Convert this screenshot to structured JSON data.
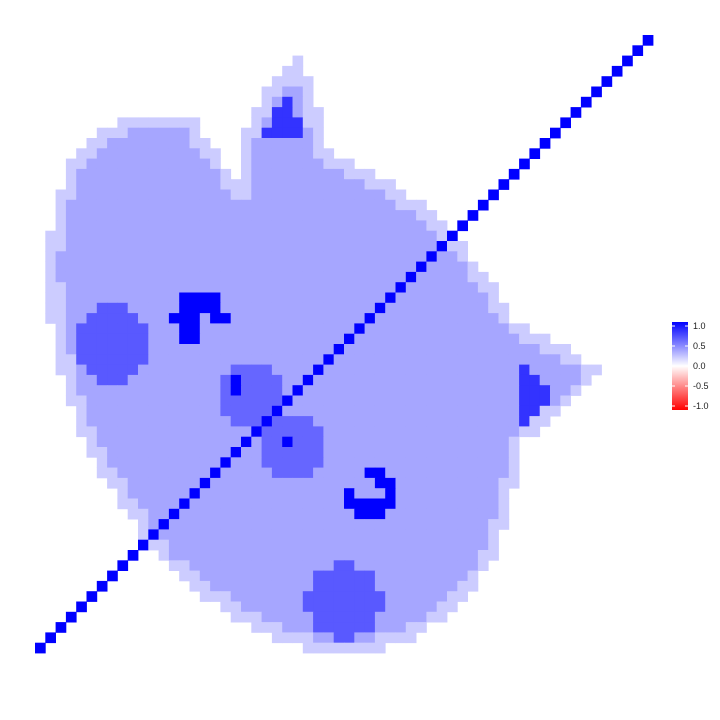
{
  "chart_data": {
    "type": "heatmap",
    "title": "",
    "xlabel": "",
    "ylabel": "",
    "grid": false,
    "axes_visible": false,
    "legend": {
      "position": "right",
      "title": "",
      "ticks": [
        "1.0",
        "0.5",
        "0.0",
        "-0.5",
        "-1.0"
      ],
      "range": [
        -1.0,
        1.0
      ]
    },
    "colorscale": {
      "low": "#ff0000",
      "mid": "#ffffff",
      "high": "#0000ff"
    },
    "grid_size": [
      60,
      60
    ],
    "background_value": 0.35,
    "edge_value": 0.2,
    "regions": [
      {
        "name": "diagonal",
        "value": 1.0
      },
      {
        "name": "spot-left",
        "value": 0.65
      },
      {
        "name": "spot-bottom",
        "value": 0.65
      },
      {
        "name": "ear-top",
        "value": 0.8
      },
      {
        "name": "ear-right",
        "value": 0.8
      },
      {
        "name": "eye-left",
        "value": 1.0
      },
      {
        "name": "eye-right",
        "value": 1.0
      },
      {
        "name": "mouth",
        "value": 0.6
      },
      {
        "name": "mouth-spots",
        "value": 1.0
      }
    ]
  }
}
